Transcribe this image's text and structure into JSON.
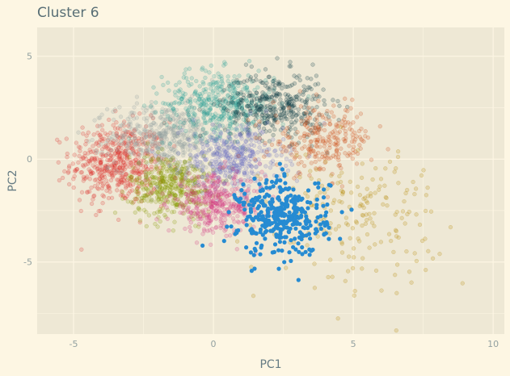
{
  "chart_data": {
    "type": "scatter",
    "title": "Cluster 6",
    "xlabel": "PC1",
    "ylabel": "PC2",
    "xlim": [
      -6.3,
      10.4
    ],
    "ylim": [
      -8.5,
      6.4
    ],
    "xticks": [
      -5,
      0,
      5,
      10
    ],
    "yticks": [
      -5,
      0,
      5
    ],
    "grid": true,
    "legend": "none",
    "highlighted_cluster": 6,
    "background_color": "#eee8d5",
    "page_color": "#fdf6e3",
    "clusters": [
      {
        "id": 1,
        "color": "#dc322f",
        "center": [
          -3.4,
          -0.2
        ],
        "spread": [
          0.85,
          1.0
        ],
        "n": 520,
        "highlighted": false
      },
      {
        "id": 2,
        "color": "#93a1a1",
        "center": [
          -1.7,
          1.1
        ],
        "spread": [
          1.0,
          0.8
        ],
        "n": 480,
        "highlighted": false
      },
      {
        "id": 3,
        "color": "#2aa198",
        "center": [
          0.2,
          2.7
        ],
        "spread": [
          1.0,
          0.8
        ],
        "n": 420,
        "highlighted": false
      },
      {
        "id": 4,
        "color": "#073642",
        "center": [
          2.2,
          2.6
        ],
        "spread": [
          0.9,
          0.8
        ],
        "n": 380,
        "highlighted": false
      },
      {
        "id": 5,
        "color": "#859900",
        "center": [
          -1.5,
          -1.3
        ],
        "spread": [
          0.75,
          0.75
        ],
        "n": 420,
        "highlighted": false
      },
      {
        "id": 6,
        "color": "#268bd2",
        "center": [
          2.5,
          -2.8
        ],
        "spread": [
          0.8,
          0.95
        ],
        "n": 360,
        "highlighted": true
      },
      {
        "id": 7,
        "color": "#6c71c4",
        "center": [
          0.7,
          0.0
        ],
        "spread": [
          0.9,
          0.8
        ],
        "n": 400,
        "highlighted": false
      },
      {
        "id": 8,
        "color": "#d33682",
        "center": [
          0.1,
          -2.2
        ],
        "spread": [
          0.85,
          0.7
        ],
        "n": 380,
        "highlighted": false
      },
      {
        "id": 9,
        "color": "#cb4b16",
        "center": [
          3.9,
          0.9
        ],
        "spread": [
          0.9,
          0.8
        ],
        "n": 260,
        "highlighted": false
      },
      {
        "id": 10,
        "color": "#b58900",
        "center": [
          5.0,
          -2.7
        ],
        "spread": [
          1.5,
          1.6
        ],
        "n": 200,
        "highlighted": false
      }
    ]
  }
}
